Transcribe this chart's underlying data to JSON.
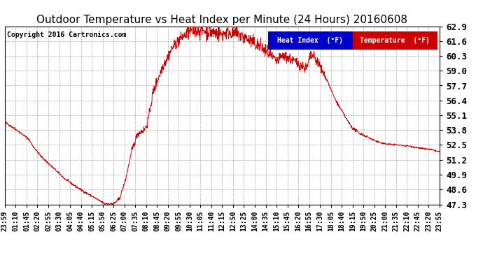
{
  "title": "Outdoor Temperature vs Heat Index per Minute (24 Hours) 20160608",
  "copyright": "Copyright 2016 Cartronics.com",
  "legend_items": [
    {
      "label": "Heat Index  (°F)",
      "bg_color": "#0000cc",
      "text_color": "white"
    },
    {
      "label": "Temperature  (°F)",
      "bg_color": "#cc0000",
      "text_color": "white"
    }
  ],
  "line_color": "#cc0000",
  "ylim": [
    47.3,
    62.9
  ],
  "yticks": [
    47.3,
    48.6,
    49.9,
    51.2,
    52.5,
    53.8,
    55.1,
    56.4,
    57.7,
    59.0,
    60.3,
    61.6,
    62.9
  ],
  "background_color": "#ffffff",
  "plot_bg_color": "#ffffff",
  "grid_color": "#aaaaaa",
  "title_fontsize": 11,
  "copyright_fontsize": 7,
  "tick_fontsize": 7,
  "ytick_fontsize": 9,
  "x_tick_labels": [
    "23:59",
    "01:10",
    "01:45",
    "02:20",
    "02:55",
    "03:30",
    "04:05",
    "04:40",
    "05:15",
    "05:50",
    "06:25",
    "07:00",
    "07:35",
    "08:10",
    "08:45",
    "09:20",
    "09:55",
    "10:30",
    "11:05",
    "11:40",
    "12:15",
    "12:50",
    "13:25",
    "14:00",
    "14:35",
    "15:10",
    "15:45",
    "16:20",
    "16:55",
    "17:30",
    "18:05",
    "18:40",
    "19:15",
    "19:50",
    "20:25",
    "21:00",
    "21:35",
    "22:10",
    "22:45",
    "23:20",
    "23:55"
  ],
  "num_points": 1440,
  "control_points": [
    [
      0,
      54.5
    ],
    [
      40,
      53.8
    ],
    [
      80,
      53.0
    ],
    [
      90,
      52.5
    ],
    [
      120,
      51.5
    ],
    [
      160,
      50.5
    ],
    [
      200,
      49.5
    ],
    [
      250,
      48.6
    ],
    [
      290,
      48.0
    ],
    [
      330,
      47.35
    ],
    [
      360,
      47.35
    ],
    [
      380,
      47.8
    ],
    [
      400,
      49.5
    ],
    [
      420,
      52.0
    ],
    [
      440,
      53.5
    ],
    [
      460,
      53.8
    ],
    [
      470,
      54.2
    ],
    [
      480,
      55.5
    ],
    [
      490,
      57.0
    ],
    [
      500,
      57.8
    ],
    [
      510,
      58.5
    ],
    [
      520,
      59.2
    ],
    [
      530,
      59.8
    ],
    [
      540,
      60.2
    ],
    [
      550,
      60.8
    ],
    [
      560,
      61.2
    ],
    [
      570,
      61.5
    ],
    [
      580,
      61.8
    ],
    [
      590,
      62.0
    ],
    [
      600,
      62.2
    ],
    [
      620,
      62.5
    ],
    [
      640,
      62.6
    ],
    [
      660,
      62.5
    ],
    [
      680,
      62.4
    ],
    [
      700,
      62.3
    ],
    [
      720,
      62.2
    ],
    [
      740,
      62.4
    ],
    [
      760,
      62.3
    ],
    [
      780,
      62.1
    ],
    [
      800,
      61.8
    ],
    [
      820,
      61.5
    ],
    [
      840,
      61.2
    ],
    [
      860,
      60.8
    ],
    [
      880,
      60.3
    ],
    [
      900,
      59.8
    ],
    [
      920,
      60.3
    ],
    [
      940,
      60.1
    ],
    [
      960,
      59.8
    ],
    [
      980,
      59.5
    ],
    [
      1000,
      59.2
    ],
    [
      1010,
      60.2
    ],
    [
      1020,
      60.3
    ],
    [
      1040,
      59.6
    ],
    [
      1050,
      59.0
    ],
    [
      1060,
      58.5
    ],
    [
      1070,
      58.0
    ],
    [
      1080,
      57.3
    ],
    [
      1090,
      56.7
    ],
    [
      1100,
      56.2
    ],
    [
      1110,
      55.7
    ],
    [
      1120,
      55.3
    ],
    [
      1130,
      54.8
    ],
    [
      1140,
      54.4
    ],
    [
      1150,
      54.0
    ],
    [
      1170,
      53.6
    ],
    [
      1200,
      53.2
    ],
    [
      1230,
      52.8
    ],
    [
      1260,
      52.6
    ],
    [
      1300,
      52.5
    ],
    [
      1340,
      52.4
    ],
    [
      1380,
      52.2
    ],
    [
      1410,
      52.1
    ],
    [
      1439,
      51.9
    ]
  ]
}
